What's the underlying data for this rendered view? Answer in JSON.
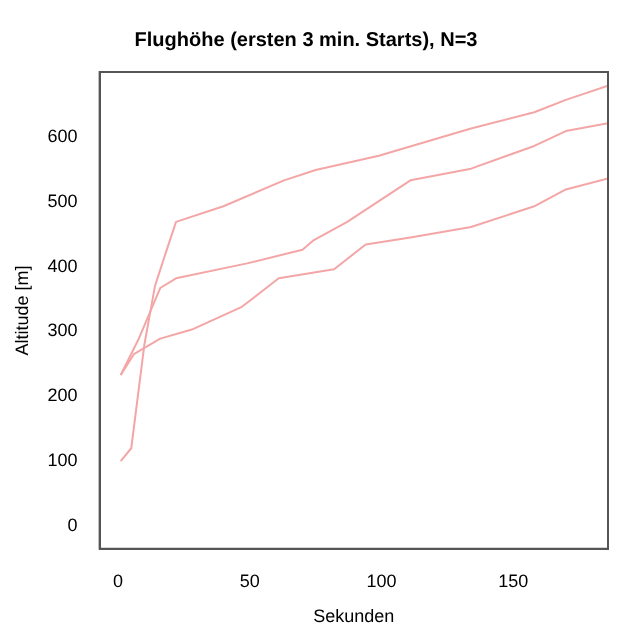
{
  "chart_data": {
    "type": "line",
    "title": "Flughöhe (ersten 3 min. Starts), N=3",
    "xlabel": "Sekunden",
    "ylabel": "Altitude [m]",
    "xlim": [
      -7,
      186
    ],
    "ylim": [
      -35,
      700
    ],
    "xticks": [
      0,
      50,
      100,
      150
    ],
    "yticks": [
      0,
      100,
      200,
      300,
      400,
      500,
      600
    ],
    "grid": false,
    "legend": false,
    "marker": "none",
    "line_style": "solid",
    "series": [
      {
        "color": "#f4a6a6",
        "x": [
          1,
          5,
          10,
          14,
          18,
          22,
          40,
          63,
          75,
          99,
          134,
          158,
          170,
          186
        ],
        "values": [
          100,
          120,
          280,
          370,
          420,
          469,
          493,
          533,
          549,
          571,
          613,
          638,
          657,
          679
        ]
      },
      {
        "color": "#f4a6a6",
        "x": [
          1,
          8,
          16,
          22,
          49,
          70,
          74,
          87,
          111,
          134,
          158,
          170,
          186
        ],
        "values": [
          233,
          290,
          367,
          382,
          405,
          426,
          440,
          469,
          533,
          551,
          586,
          609,
          621
        ]
      },
      {
        "color": "#f4a6a6",
        "x": [
          1,
          6,
          16,
          28,
          47,
          61,
          82,
          94,
          111,
          134,
          158,
          170,
          186
        ],
        "values": [
          233,
          265,
          289,
          303,
          338,
          382,
          396,
          434,
          445,
          461,
          493,
          519,
          536
        ]
      }
    ]
  }
}
